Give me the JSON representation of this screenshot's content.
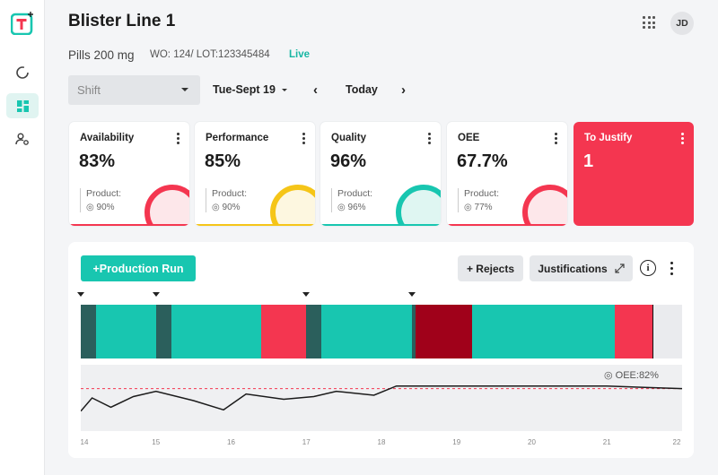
{
  "app": {
    "logo_icon": "logo-icon"
  },
  "sidebar": {
    "items": [
      {
        "name": "dashboard-progress",
        "icon": "circular-progress-icon",
        "active": false
      },
      {
        "name": "dashboard-grid",
        "icon": "dashboard-icon",
        "active": true
      },
      {
        "name": "user-settings",
        "icon": "user-settings-icon",
        "active": false
      }
    ]
  },
  "header": {
    "title": "Blister Line 1",
    "product": "Pills 200 mg",
    "work_order": "WO: 124/ LOT:123345484",
    "status": "Live",
    "avatar_initials": "JD"
  },
  "filters": {
    "shift_placeholder": "Shift",
    "date": "Tue-Sept 19",
    "today_label": "Today"
  },
  "kpis": [
    {
      "label": "Availability",
      "value": "83%",
      "product_label": "Product:",
      "product_value": "90%",
      "color": "#f43650",
      "ring_bg": "#fde7ea"
    },
    {
      "label": "Performance",
      "value": "85%",
      "product_label": "Product:",
      "product_value": "90%",
      "color": "#f5c518",
      "ring_bg": "#fdf7e0"
    },
    {
      "label": "Quality",
      "value": "96%",
      "product_label": "Product:",
      "product_value": "96%",
      "color": "#18c6b0",
      "ring_bg": "#dff6f2"
    },
    {
      "label": "OEE",
      "value": "67.7%",
      "product_label": "Product:",
      "product_value": "77%",
      "color": "#f43650",
      "ring_bg": "#fde7ea"
    }
  ],
  "justify_card": {
    "label": "To Justify",
    "value": "1",
    "color": "#f43650"
  },
  "production": {
    "add_run_label": "+Production Run",
    "rejects_label": "+ Rejects",
    "justifications_label": "Justifications",
    "info_icon": "info-icon",
    "more_icon": "more-vertical-icon"
  },
  "chart_data": {
    "type": "line",
    "title": "",
    "annotation": "OEE:82%",
    "x_ticks": [
      "14",
      "15",
      "16",
      "17",
      "18",
      "19",
      "20",
      "21",
      "22"
    ],
    "xlim": [
      14,
      22
    ],
    "ylim": [
      50,
      100
    ],
    "target": 82,
    "x": [
      14,
      14.15,
      14.4,
      14.7,
      15.0,
      15.5,
      15.9,
      16.2,
      16.7,
      17.1,
      17.4,
      17.9,
      18.2,
      19,
      20,
      21,
      21.5,
      22
    ],
    "y": [
      65,
      75,
      68,
      76,
      80,
      73,
      66,
      78,
      74,
      76,
      80,
      77,
      84,
      84,
      84,
      84,
      83,
      82
    ],
    "timeline_states": [
      {
        "state": "downtime",
        "from": 14.0,
        "to": 14.2,
        "color": "#2b5f5c"
      },
      {
        "state": "running",
        "from": 14.2,
        "to": 15.0,
        "color": "#18c6b0"
      },
      {
        "state": "downtime",
        "from": 15.0,
        "to": 15.2,
        "color": "#2b5f5c"
      },
      {
        "state": "running",
        "from": 15.2,
        "to": 16.4,
        "color": "#18c6b0"
      },
      {
        "state": "stopped",
        "from": 16.4,
        "to": 17.0,
        "color": "#f43650"
      },
      {
        "state": "downtime",
        "from": 17.0,
        "to": 17.2,
        "color": "#2b5f5c"
      },
      {
        "state": "running",
        "from": 17.2,
        "to": 18.4,
        "color": "#18c6b0"
      },
      {
        "state": "downtime",
        "from": 18.4,
        "to": 18.45,
        "color": "#2b5f5c"
      },
      {
        "state": "critical",
        "from": 18.45,
        "to": 19.2,
        "color": "#a0011a"
      },
      {
        "state": "running",
        "from": 19.2,
        "to": 21.1,
        "color": "#18c6b0"
      },
      {
        "state": "stopped",
        "from": 21.1,
        "to": 21.6,
        "color": "#f43650"
      },
      {
        "state": "current",
        "from": 21.6,
        "to": 21.62,
        "color": "#111111"
      },
      {
        "state": "future",
        "from": 21.62,
        "to": 22.0,
        "color": "#eaebee"
      }
    ],
    "event_markers": [
      14.0,
      15.0,
      17.0,
      18.4
    ]
  }
}
